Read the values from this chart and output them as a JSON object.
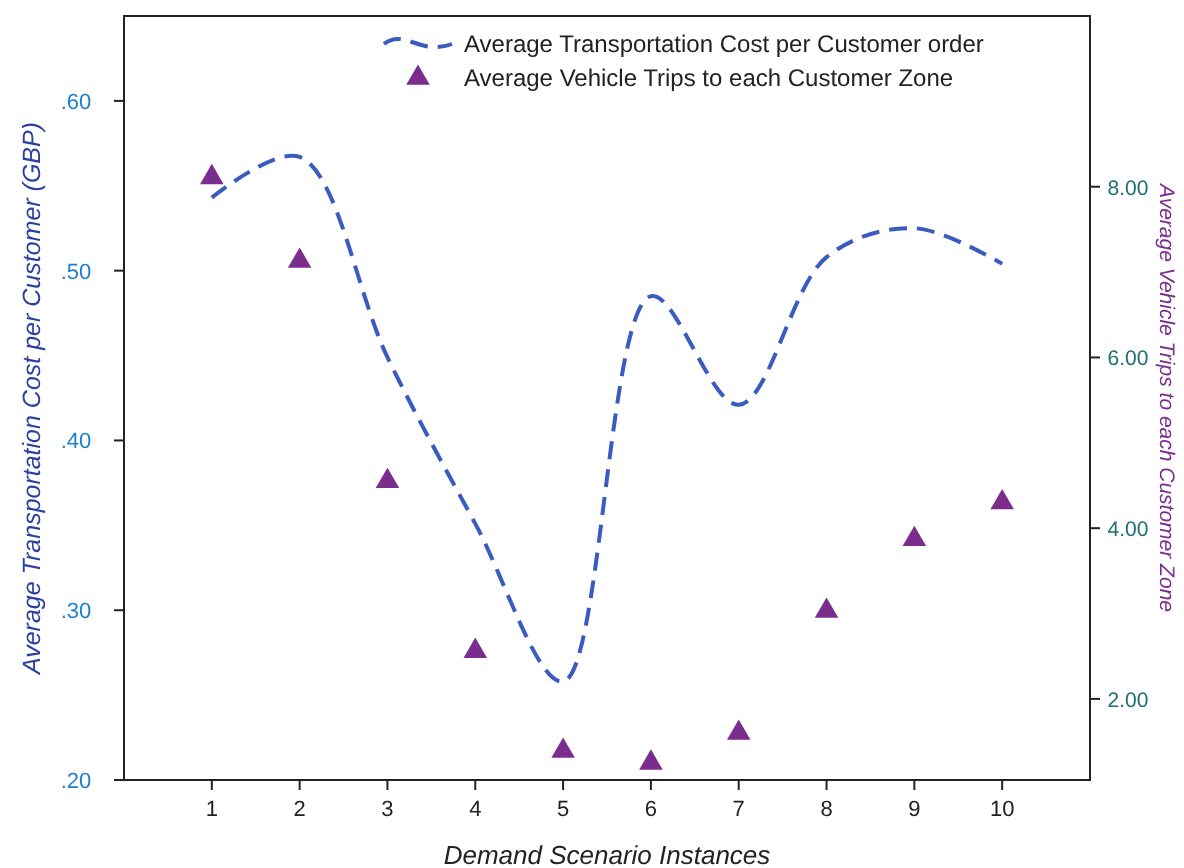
{
  "chart_data": {
    "type": "line",
    "xlabel": "Demand Scenario Instances",
    "ylabel": "Average Transportation Cost per Customer (GBP)",
    "y2label": "Average Vehicle Trips to each Customer Zone",
    "x": [
      1,
      2,
      3,
      4,
      5,
      6,
      7,
      8,
      9,
      10
    ],
    "xlim": [
      0,
      11
    ],
    "xticks": [
      1,
      2,
      3,
      4,
      5,
      6,
      7,
      8,
      9,
      10
    ],
    "ylim": [
      0.2,
      0.65
    ],
    "yticks": [
      {
        "value": 0.2,
        "label": ".20"
      },
      {
        "value": 0.3,
        "label": ".30"
      },
      {
        "value": 0.4,
        "label": ".40"
      },
      {
        "value": 0.5,
        "label": ".50"
      },
      {
        "value": 0.6,
        "label": ".60"
      }
    ],
    "y2lim": [
      1.05,
      10
    ],
    "y2ticks": [
      {
        "value": 2,
        "label": "2.00"
      },
      {
        "value": 4,
        "label": "4.00"
      },
      {
        "value": 6,
        "label": "6.00"
      },
      {
        "value": 8,
        "label": "8.00"
      }
    ],
    "legend": "top right",
    "grid": false,
    "series": [
      {
        "name": "Average Transportation Cost per Customer order",
        "color": "#3a5bbf",
        "line_style": "dashed",
        "marker": "none",
        "axis": "y",
        "values": [
          0.543,
          0.567,
          0.449,
          0.351,
          0.258,
          0.485,
          0.421,
          0.508,
          0.525,
          0.504
        ]
      },
      {
        "name": "Average Vehicle Trips to each Customer Zone",
        "type": "scatter",
        "color": "#7b2d8e",
        "marker": "triangle",
        "axis": "y2",
        "values": [
          8.11,
          7.13,
          4.55,
          2.56,
          1.39,
          1.25,
          1.6,
          3.03,
          3.87,
          4.3
        ]
      }
    ]
  }
}
